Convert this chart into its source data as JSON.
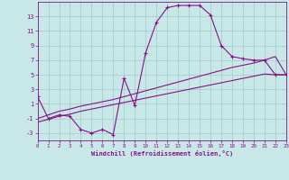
{
  "background_color": "#c8e8e8",
  "grid_color": "#a0c8c8",
  "line_color": "#881088",
  "x_hours": [
    0,
    1,
    2,
    3,
    4,
    5,
    6,
    7,
    8,
    9,
    10,
    11,
    12,
    13,
    14,
    15,
    16,
    17,
    18,
    19,
    20,
    21,
    22,
    23
  ],
  "temp_main": [
    2.0,
    -1.0,
    -0.5,
    -0.7,
    -2.5,
    -3.0,
    -2.5,
    -3.2,
    4.5,
    0.8,
    8.0,
    12.2,
    14.2,
    14.5,
    14.5,
    14.5,
    13.2,
    9.0,
    7.5,
    7.2,
    7.0,
    7.0,
    5.0,
    5.0
  ],
  "line_reg_high": [
    -1.0,
    -0.5,
    0.0,
    0.3,
    0.7,
    1.0,
    1.3,
    1.6,
    2.0,
    2.4,
    2.8,
    3.2,
    3.6,
    4.0,
    4.4,
    4.8,
    5.2,
    5.6,
    6.0,
    6.3,
    6.6,
    7.0,
    7.5,
    5.0
  ],
  "line_reg_low": [
    -1.5,
    -1.1,
    -0.7,
    -0.4,
    0.0,
    0.3,
    0.6,
    0.9,
    1.2,
    1.5,
    1.8,
    2.1,
    2.4,
    2.7,
    3.0,
    3.3,
    3.6,
    3.9,
    4.2,
    4.5,
    4.8,
    5.1,
    5.0,
    5.0
  ],
  "ylim": [
    -4.0,
    15.0
  ],
  "yticks": [
    -3,
    -1,
    1,
    3,
    5,
    7,
    9,
    11,
    13
  ],
  "xlim": [
    0,
    23
  ],
  "xlabel": "Windchill (Refroidissement éolien,°C)"
}
